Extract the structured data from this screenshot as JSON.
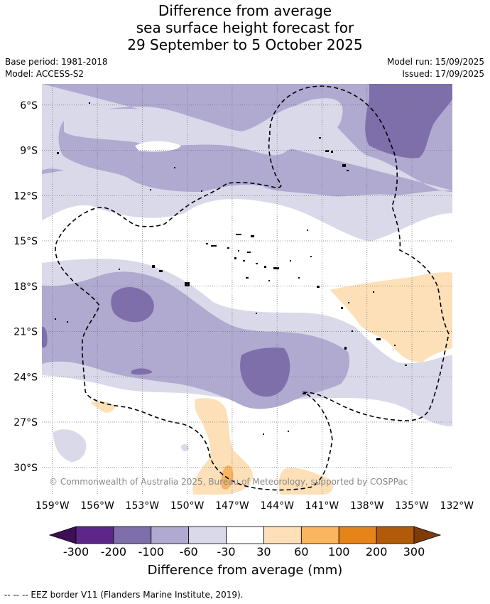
{
  "title": {
    "line1": "Difference from average",
    "line2": "sea surface height forecast for",
    "line3": "29 September to 5 October 2025"
  },
  "meta": {
    "base_period": "Base period: 1981-2018",
    "model": "Model: ACCESS-S2",
    "model_run": "Model run: 15/09/2025",
    "issued": "Issued: 17/09/2025"
  },
  "map": {
    "lat_labels": [
      "6°S",
      "9°S",
      "12°S",
      "15°S",
      "18°S",
      "21°S",
      "24°S",
      "27°S",
      "30°S"
    ],
    "lat_values": [
      -6,
      -9,
      -12,
      -15,
      -18,
      -21,
      -24,
      -27,
      -30
    ],
    "lon_labels": [
      "159°W",
      "156°W",
      "153°W",
      "150°W",
      "147°W",
      "144°W",
      "141°W",
      "138°W",
      "135°W",
      "132°W"
    ],
    "lon_values": [
      -159,
      -156,
      -153,
      -150,
      -147,
      -144,
      -141,
      -138,
      -135,
      -132
    ],
    "extent": {
      "lon_min": -159.7,
      "lon_max": -132.3,
      "lat_min": -31.8,
      "lat_max": -4.6
    },
    "copyright": "© Commonwealth of Australia 2025, Bureau of Meteorology, supported by COSPPac"
  },
  "legend": {
    "title": "Difference from average (mm)",
    "tick_labels": [
      "-300",
      "-200",
      "-100",
      "-60",
      "-30",
      "30",
      "60",
      "100",
      "200",
      "300"
    ],
    "colors": [
      "#3d0f57",
      "#5c2789",
      "#7e6eaa",
      "#b0a9d0",
      "#d9d9ea",
      "#ffffff",
      "#fde0b8",
      "#fbb45f",
      "#e4841a",
      "#b05a0a",
      "#7f3b08"
    ]
  },
  "footnote": "--  --  -- EEZ border V11 (Flanders Marine Institute, 2019)."
}
